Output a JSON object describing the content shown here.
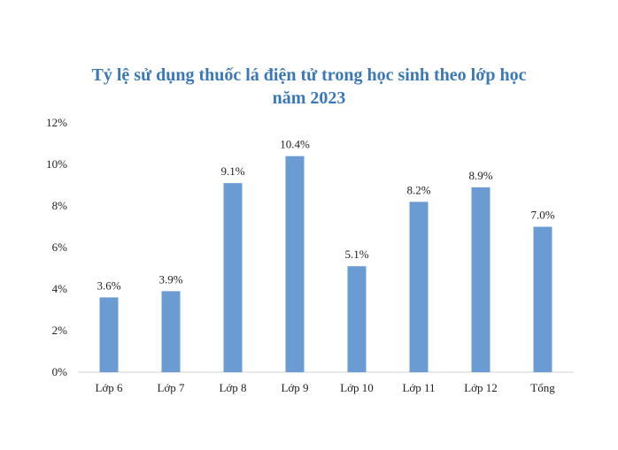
{
  "chart_data": {
    "type": "bar",
    "title_lines": [
      "Tỷ lệ sử dụng thuốc lá điện tử trong học sinh theo lớp học",
      "năm 2023"
    ],
    "categories": [
      "Lớp 6",
      "Lớp 7",
      "Lớp 8",
      "Lớp 9",
      "Lớp 10",
      "Lớp 11",
      "Lớp 12",
      "Tổng"
    ],
    "values": [
      3.6,
      3.9,
      9.1,
      10.4,
      5.1,
      8.2,
      8.9,
      7.0
    ],
    "data_labels": [
      "3.6%",
      "3.9%",
      "9.1%",
      "10.4%",
      "5.1%",
      "8.2%",
      "8.9%",
      "7.0%"
    ],
    "yticks": [
      0,
      2,
      4,
      6,
      8,
      10,
      12
    ],
    "ytick_labels": [
      "0%",
      "2%",
      "4%",
      "6%",
      "8%",
      "10%",
      "12%"
    ],
    "ylim": [
      0,
      12
    ],
    "xlabel": "",
    "ylabel": "",
    "grid": false,
    "legend": false,
    "colors": {
      "bar": "#6a9bd3",
      "axis": "#d0d0d0",
      "title": "#3a78b8"
    }
  }
}
